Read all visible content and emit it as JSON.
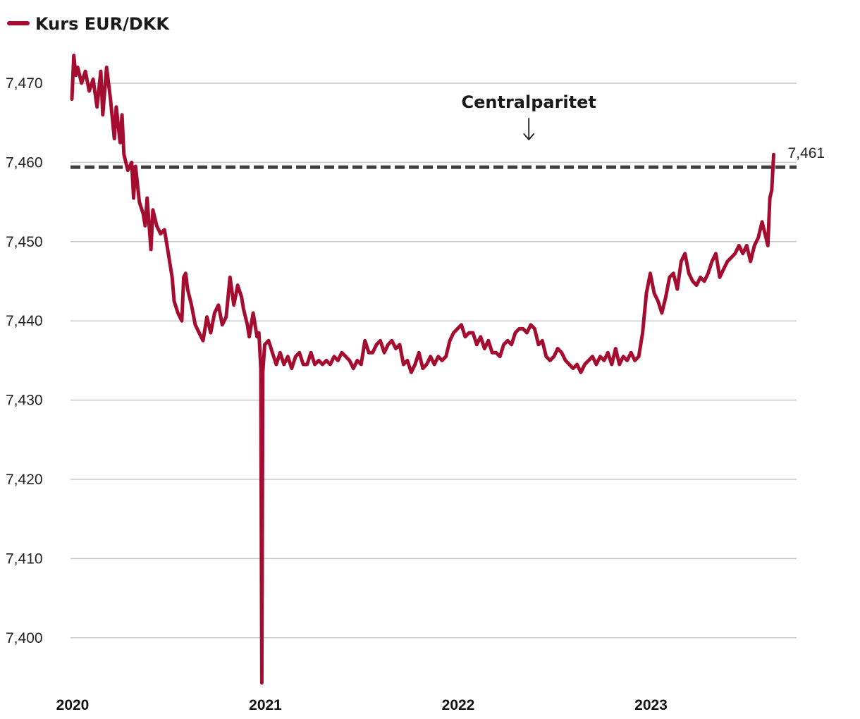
{
  "chart_data": {
    "type": "line",
    "legend": {
      "placement": "top-left",
      "entries": [
        "Kurs EUR/DKK"
      ]
    },
    "series": [
      {
        "name": "Kurs EUR/DKK",
        "color": "#a50d30",
        "points": [
          [
            2020.0,
            7.468
          ],
          [
            2020.01,
            7.4735
          ],
          [
            2020.02,
            7.471
          ],
          [
            2020.03,
            7.472
          ],
          [
            2020.05,
            7.47
          ],
          [
            2020.07,
            7.4715
          ],
          [
            2020.09,
            7.469
          ],
          [
            2020.11,
            7.4705
          ],
          [
            2020.13,
            7.467
          ],
          [
            2020.15,
            7.4715
          ],
          [
            2020.16,
            7.466
          ],
          [
            2020.18,
            7.472
          ],
          [
            2020.2,
            7.468
          ],
          [
            2020.22,
            7.463
          ],
          [
            2020.23,
            7.467
          ],
          [
            2020.25,
            7.4625
          ],
          [
            2020.26,
            7.466
          ],
          [
            2020.27,
            7.461
          ],
          [
            2020.29,
            7.459
          ],
          [
            2020.31,
            7.46
          ],
          [
            2020.32,
            7.4555
          ],
          [
            2020.33,
            7.4595
          ],
          [
            2020.35,
            7.455
          ],
          [
            2020.37,
            7.4535
          ],
          [
            2020.38,
            7.452
          ],
          [
            2020.39,
            7.4555
          ],
          [
            2020.41,
            7.449
          ],
          [
            2020.42,
            7.454
          ],
          [
            2020.44,
            7.452
          ],
          [
            2020.46,
            7.451
          ],
          [
            2020.48,
            7.4515
          ],
          [
            2020.5,
            7.4485
          ],
          [
            2020.52,
            7.4455
          ],
          [
            2020.53,
            7.4425
          ],
          [
            2020.55,
            7.441
          ],
          [
            2020.57,
            7.44
          ],
          [
            2020.58,
            7.4455
          ],
          [
            2020.59,
            7.446
          ],
          [
            2020.6,
            7.444
          ],
          [
            2020.62,
            7.442
          ],
          [
            2020.64,
            7.4395
          ],
          [
            2020.66,
            7.4385
          ],
          [
            2020.68,
            7.4375
          ],
          [
            2020.7,
            7.4405
          ],
          [
            2020.72,
            7.4385
          ],
          [
            2020.74,
            7.441
          ],
          [
            2020.76,
            7.442
          ],
          [
            2020.78,
            7.4395
          ],
          [
            2020.8,
            7.4405
          ],
          [
            2020.82,
            7.4455
          ],
          [
            2020.84,
            7.442
          ],
          [
            2020.86,
            7.4445
          ],
          [
            2020.88,
            7.443
          ],
          [
            2020.89,
            7.4415
          ],
          [
            2020.91,
            7.4395
          ],
          [
            2020.92,
            7.438
          ],
          [
            2020.94,
            7.441
          ],
          [
            2020.96,
            7.438
          ],
          [
            2020.97,
            7.4385
          ],
          [
            2020.98,
            7.434
          ],
          [
            2020.985,
            7.3943
          ],
          [
            2020.99,
            7.4335
          ],
          [
            2021.0,
            7.437
          ],
          [
            2021.02,
            7.4375
          ],
          [
            2021.04,
            7.436
          ],
          [
            2021.06,
            7.4345
          ],
          [
            2021.08,
            7.436
          ],
          [
            2021.1,
            7.4345
          ],
          [
            2021.12,
            7.4355
          ],
          [
            2021.14,
            7.434
          ],
          [
            2021.16,
            7.4355
          ],
          [
            2021.18,
            7.436
          ],
          [
            2021.2,
            7.4345
          ],
          [
            2021.22,
            7.4345
          ],
          [
            2021.24,
            7.436
          ],
          [
            2021.26,
            7.4345
          ],
          [
            2021.28,
            7.435
          ],
          [
            2021.3,
            7.4345
          ],
          [
            2021.32,
            7.435
          ],
          [
            2021.34,
            7.4345
          ],
          [
            2021.36,
            7.4355
          ],
          [
            2021.38,
            7.435
          ],
          [
            2021.4,
            7.436
          ],
          [
            2021.42,
            7.4355
          ],
          [
            2021.44,
            7.435
          ],
          [
            2021.46,
            7.434
          ],
          [
            2021.48,
            7.435
          ],
          [
            2021.5,
            7.4345
          ],
          [
            2021.52,
            7.4375
          ],
          [
            2021.54,
            7.436
          ],
          [
            2021.56,
            7.436
          ],
          [
            2021.58,
            7.437
          ],
          [
            2021.6,
            7.4375
          ],
          [
            2021.62,
            7.436
          ],
          [
            2021.64,
            7.437
          ],
          [
            2021.66,
            7.4375
          ],
          [
            2021.68,
            7.4365
          ],
          [
            2021.7,
            7.437
          ],
          [
            2021.72,
            7.4345
          ],
          [
            2021.74,
            7.435
          ],
          [
            2021.76,
            7.4335
          ],
          [
            2021.78,
            7.4345
          ],
          [
            2021.8,
            7.436
          ],
          [
            2021.82,
            7.434
          ],
          [
            2021.84,
            7.4345
          ],
          [
            2021.86,
            7.4355
          ],
          [
            2021.88,
            7.4345
          ],
          [
            2021.9,
            7.4355
          ],
          [
            2021.92,
            7.435
          ],
          [
            2021.94,
            7.4355
          ],
          [
            2021.96,
            7.4375
          ],
          [
            2021.98,
            7.4385
          ],
          [
            2022.0,
            7.439
          ],
          [
            2022.02,
            7.4395
          ],
          [
            2022.04,
            7.438
          ],
          [
            2022.06,
            7.4385
          ],
          [
            2022.08,
            7.4385
          ],
          [
            2022.1,
            7.437
          ],
          [
            2022.12,
            7.438
          ],
          [
            2022.14,
            7.4365
          ],
          [
            2022.16,
            7.4375
          ],
          [
            2022.18,
            7.436
          ],
          [
            2022.2,
            7.436
          ],
          [
            2022.22,
            7.4355
          ],
          [
            2022.24,
            7.437
          ],
          [
            2022.26,
            7.4375
          ],
          [
            2022.28,
            7.437
          ],
          [
            2022.3,
            7.4385
          ],
          [
            2022.32,
            7.439
          ],
          [
            2022.34,
            7.439
          ],
          [
            2022.36,
            7.4385
          ],
          [
            2022.38,
            7.4395
          ],
          [
            2022.4,
            7.439
          ],
          [
            2022.42,
            7.437
          ],
          [
            2022.44,
            7.4375
          ],
          [
            2022.46,
            7.4355
          ],
          [
            2022.48,
            7.435
          ],
          [
            2022.5,
            7.4355
          ],
          [
            2022.52,
            7.4365
          ],
          [
            2022.54,
            7.436
          ],
          [
            2022.56,
            7.435
          ],
          [
            2022.58,
            7.4345
          ],
          [
            2022.6,
            7.434
          ],
          [
            2022.62,
            7.4345
          ],
          [
            2022.64,
            7.4335
          ],
          [
            2022.66,
            7.4345
          ],
          [
            2022.68,
            7.435
          ],
          [
            2022.7,
            7.4355
          ],
          [
            2022.72,
            7.4345
          ],
          [
            2022.74,
            7.4355
          ],
          [
            2022.76,
            7.435
          ],
          [
            2022.78,
            7.436
          ],
          [
            2022.8,
            7.4345
          ],
          [
            2022.82,
            7.4365
          ],
          [
            2022.84,
            7.4345
          ],
          [
            2022.86,
            7.4355
          ],
          [
            2022.88,
            7.435
          ],
          [
            2022.9,
            7.436
          ],
          [
            2022.92,
            7.435
          ],
          [
            2022.94,
            7.4355
          ],
          [
            2022.96,
            7.4385
          ],
          [
            2022.98,
            7.4435
          ],
          [
            2023.0,
            7.446
          ],
          [
            2023.02,
            7.4435
          ],
          [
            2023.04,
            7.4425
          ],
          [
            2023.06,
            7.441
          ],
          [
            2023.08,
            7.443
          ],
          [
            2023.1,
            7.4455
          ],
          [
            2023.12,
            7.446
          ],
          [
            2023.14,
            7.444
          ],
          [
            2023.16,
            7.4475
          ],
          [
            2023.18,
            7.4485
          ],
          [
            2023.2,
            7.446
          ],
          [
            2023.22,
            7.445
          ],
          [
            2023.24,
            7.4445
          ],
          [
            2023.26,
            7.4455
          ],
          [
            2023.28,
            7.445
          ],
          [
            2023.3,
            7.446
          ],
          [
            2023.32,
            7.4475
          ],
          [
            2023.34,
            7.4485
          ],
          [
            2023.36,
            7.4455
          ],
          [
            2023.38,
            7.4465
          ],
          [
            2023.4,
            7.4475
          ],
          [
            2023.42,
            7.448
          ],
          [
            2023.44,
            7.4485
          ],
          [
            2023.46,
            7.4495
          ],
          [
            2023.48,
            7.4485
          ],
          [
            2023.5,
            7.4495
          ],
          [
            2023.52,
            7.4475
          ],
          [
            2023.54,
            7.4495
          ],
          [
            2023.56,
            7.4505
          ],
          [
            2023.58,
            7.4525
          ],
          [
            2023.6,
            7.4505
          ],
          [
            2023.61,
            7.4495
          ],
          [
            2023.62,
            7.4555
          ],
          [
            2023.63,
            7.4565
          ],
          [
            2023.64,
            7.461
          ]
        ]
      }
    ],
    "reference_line": {
      "value": 7.4594,
      "label": "Centralparitet",
      "style": "dashed"
    },
    "end_label": "7,461",
    "y_ticks": [
      "7,400",
      "7,410",
      "7,420",
      "7,430",
      "7,440",
      "7,450",
      "7,460",
      "7,470"
    ],
    "y_tick_values": [
      7.4,
      7.41,
      7.42,
      7.43,
      7.44,
      7.45,
      7.46,
      7.47
    ],
    "x_ticks": [
      "2020",
      "2021",
      "2022",
      "2023"
    ],
    "x_tick_values": [
      2020,
      2021,
      2022,
      2023
    ],
    "xlim": [
      2020.0,
      2023.7
    ],
    "ylim": [
      7.394,
      7.476
    ],
    "grid": "horizontal",
    "xlabel": "",
    "ylabel": ""
  }
}
